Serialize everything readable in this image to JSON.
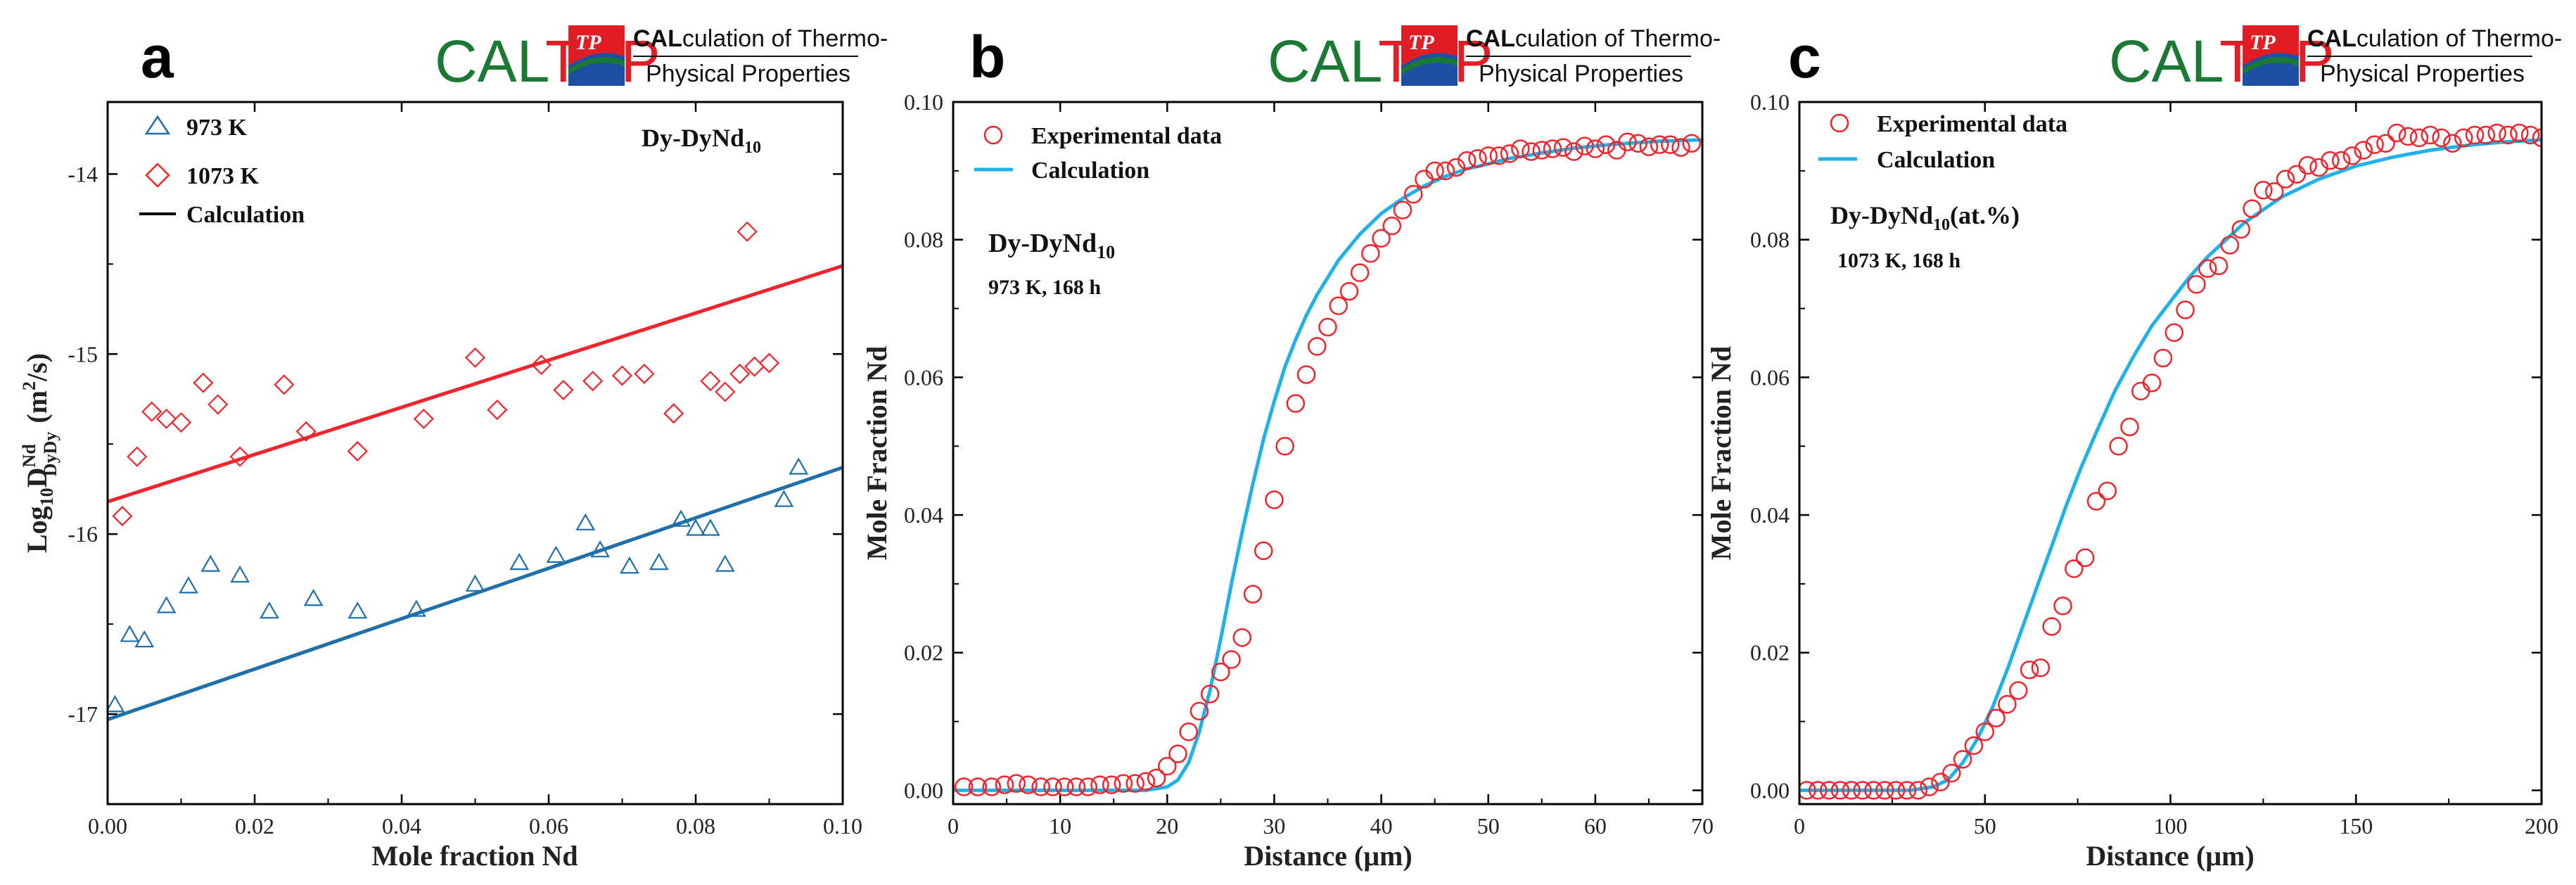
{
  "logo": {
    "brand_cal": "CAL",
    "brand_tpp": "TPP",
    "badge": "TP",
    "line1_bold": "CAL",
    "line1_rest": "culation of Thermo-",
    "line2": "Physical Properties"
  },
  "colors": {
    "red": "#f0242c",
    "blue": "#1f6fa8",
    "cyan": "#1fb1e8",
    "logo_green": "#1a7a33",
    "logo_red": "#e11d25",
    "logo_blue": "#1d4fa3"
  },
  "chart_data": [
    {
      "panel": "a",
      "type": "scatter",
      "title": "Dy-DyNd10",
      "xlabel": "Mole fraction Nd",
      "ylabel": "Log10 D Nd DyDy (m2/s)",
      "xlim": [
        0,
        0.1
      ],
      "ylim": [
        -17.5,
        -13.6
      ],
      "xticks": [
        0,
        0.02,
        0.04,
        0.06,
        0.08,
        0.1
      ],
      "xtick_labels": [
        "0.00",
        "0.02",
        "0.04",
        "0.06",
        "0.08",
        "0.10"
      ],
      "yticks": [
        -17,
        -16,
        -15,
        -14
      ],
      "ytick_labels": [
        "-17",
        "-16",
        "-15",
        "-14"
      ],
      "legend": [
        "973 K",
        "1073 K",
        "Calculation"
      ],
      "series": [
        {
          "name": "973 K",
          "marker": "triangle",
          "points": [
            [
              0.001,
              -16.95
            ],
            [
              0.003,
              -16.56
            ],
            [
              0.005,
              -16.59
            ],
            [
              0.008,
              -16.4
            ],
            [
              0.011,
              -16.29
            ],
            [
              0.014,
              -16.17
            ],
            [
              0.018,
              -16.23
            ],
            [
              0.022,
              -16.43
            ],
            [
              0.028,
              -16.36
            ],
            [
              0.034,
              -16.43
            ],
            [
              0.042,
              -16.42
            ],
            [
              0.05,
              -16.28
            ],
            [
              0.056,
              -16.16
            ],
            [
              0.061,
              -16.12
            ],
            [
              0.065,
              -15.94
            ],
            [
              0.067,
              -16.09
            ],
            [
              0.071,
              -16.18
            ],
            [
              0.075,
              -16.16
            ],
            [
              0.078,
              -15.92
            ],
            [
              0.08,
              -15.97
            ],
            [
              0.082,
              -15.97
            ],
            [
              0.084,
              -16.17
            ],
            [
              0.092,
              -15.81
            ],
            [
              0.094,
              -15.63
            ]
          ]
        },
        {
          "name": "1073 K",
          "marker": "diamond",
          "points": [
            [
              0.002,
              -15.9
            ],
            [
              0.004,
              -15.57
            ],
            [
              0.006,
              -15.32
            ],
            [
              0.008,
              -15.36
            ],
            [
              0.01,
              -15.38
            ],
            [
              0.013,
              -15.16
            ],
            [
              0.015,
              -15.28
            ],
            [
              0.018,
              -15.57
            ],
            [
              0.024,
              -15.17
            ],
            [
              0.027,
              -15.43
            ],
            [
              0.034,
              -15.54
            ],
            [
              0.043,
              -15.36
            ],
            [
              0.05,
              -15.02
            ],
            [
              0.053,
              -15.31
            ],
            [
              0.059,
              -15.06
            ],
            [
              0.062,
              -15.2
            ],
            [
              0.066,
              -15.15
            ],
            [
              0.07,
              -15.12
            ],
            [
              0.073,
              -15.11
            ],
            [
              0.077,
              -15.33
            ],
            [
              0.082,
              -15.15
            ],
            [
              0.084,
              -15.21
            ],
            [
              0.086,
              -15.11
            ],
            [
              0.087,
              -14.32
            ],
            [
              0.088,
              -15.07
            ],
            [
              0.09,
              -15.05
            ]
          ]
        }
      ],
      "lines": [
        {
          "name": "Calculation 1073 K",
          "color_key": "red",
          "x": [
            0,
            0.1
          ],
          "y": [
            -15.82,
            -14.51
          ]
        },
        {
          "name": "Calculation 973 K",
          "color_key": "blue",
          "x": [
            0,
            0.1
          ],
          "y": [
            -17.03,
            -15.63
          ]
        }
      ]
    },
    {
      "panel": "b",
      "type": "scatter",
      "title": "Dy-DyNd10",
      "subtitle": "973 K, 168 h",
      "xlabel": "Distance (μm)",
      "ylabel": "Mole Fraction Nd",
      "xlim": [
        0,
        70
      ],
      "ylim": [
        -0.002,
        0.1
      ],
      "xticks": [
        0,
        10,
        20,
        30,
        40,
        50,
        60,
        70
      ],
      "xtick_labels": [
        "0",
        "10",
        "20",
        "30",
        "40",
        "50",
        "60",
        "70"
      ],
      "yticks": [
        0,
        0.02,
        0.04,
        0.06,
        0.08,
        0.1
      ],
      "ytick_labels": [
        "0.00",
        "0.02",
        "0.04",
        "0.06",
        "0.08",
        "0.10"
      ],
      "legend": [
        "Experimental data",
        "Calculation"
      ],
      "series": [
        {
          "name": "Experimental data",
          "marker": "circle",
          "points": [
            [
              1,
              0.0005
            ],
            [
              2.3,
              0.0005
            ],
            [
              3.6,
              0.0005
            ],
            [
              4.8,
              0.0008
            ],
            [
              5.9,
              0.001
            ],
            [
              7,
              0.0008
            ],
            [
              8.2,
              0.0005
            ],
            [
              9.3,
              0.0005
            ],
            [
              10.4,
              0.0005
            ],
            [
              11.5,
              0.0005
            ],
            [
              12.6,
              0.0005
            ],
            [
              13.7,
              0.0008
            ],
            [
              14.8,
              0.0008
            ],
            [
              15.9,
              0.001
            ],
            [
              17,
              0.001
            ],
            [
              18,
              0.0013
            ],
            [
              19,
              0.0018
            ],
            [
              20,
              0.0035
            ],
            [
              21,
              0.0053
            ],
            [
              22,
              0.0085
            ],
            [
              23,
              0.0115
            ],
            [
              24,
              0.014
            ],
            [
              25,
              0.0172
            ],
            [
              26,
              0.019
            ],
            [
              27,
              0.0222
            ],
            [
              28,
              0.0285
            ],
            [
              29,
              0.0348
            ],
            [
              30,
              0.0422
            ],
            [
              31,
              0.05
            ],
            [
              32,
              0.0562
            ],
            [
              33,
              0.0604
            ],
            [
              34,
              0.0645
            ],
            [
              35,
              0.0673
            ],
            [
              36,
              0.0704
            ],
            [
              37,
              0.0725
            ],
            [
              38,
              0.0752
            ],
            [
              39,
              0.078
            ],
            [
              40,
              0.0802
            ],
            [
              41,
              0.082
            ],
            [
              42,
              0.0843
            ],
            [
              43,
              0.0866
            ],
            [
              44,
              0.0888
            ],
            [
              45,
              0.09
            ],
            [
              46,
              0.09
            ],
            [
              47,
              0.0905
            ],
            [
              48,
              0.0915
            ],
            [
              49,
              0.0918
            ],
            [
              50,
              0.0922
            ],
            [
              51,
              0.0922
            ],
            [
              52,
              0.0925
            ],
            [
              53,
              0.0932
            ],
            [
              54,
              0.0928
            ],
            [
              55,
              0.093
            ],
            [
              56,
              0.0932
            ],
            [
              57,
              0.0934
            ],
            [
              58,
              0.0928
            ],
            [
              59,
              0.0936
            ],
            [
              60,
              0.0932
            ],
            [
              61,
              0.0938
            ],
            [
              62,
              0.093
            ],
            [
              63,
              0.0942
            ],
            [
              64,
              0.094
            ],
            [
              65,
              0.0935
            ],
            [
              66,
              0.0938
            ],
            [
              67,
              0.0938
            ],
            [
              68,
              0.0934
            ],
            [
              69,
              0.094
            ]
          ]
        }
      ],
      "lines": [
        {
          "name": "Calculation",
          "color_key": "cyan",
          "x": [
            0,
            10,
            18,
            20,
            21,
            22,
            23,
            24,
            25,
            26,
            27,
            28,
            29,
            30,
            31,
            32,
            33,
            34,
            36,
            38,
            40,
            42,
            44,
            46,
            48,
            50,
            52,
            55,
            58,
            62,
            66,
            70
          ],
          "y": [
            0.0,
            0.0,
            0.0,
            0.0005,
            0.0015,
            0.004,
            0.0085,
            0.0145,
            0.022,
            0.03,
            0.0375,
            0.0445,
            0.051,
            0.0565,
            0.0615,
            0.0655,
            0.069,
            0.072,
            0.077,
            0.0808,
            0.0838,
            0.086,
            0.0878,
            0.0892,
            0.0903,
            0.091,
            0.0918,
            0.0926,
            0.0933,
            0.0939,
            0.0943,
            0.0945
          ]
        }
      ]
    },
    {
      "panel": "c",
      "type": "scatter",
      "title": "Dy-DyNd10(at.%)",
      "subtitle": "1073 K, 168 h",
      "xlabel": "Distance (μm)",
      "ylabel": "Mole Fraction Nd",
      "xlim": [
        0,
        200
      ],
      "ylim": [
        -0.002,
        0.1
      ],
      "xticks": [
        0,
        50,
        100,
        150,
        200
      ],
      "xtick_labels": [
        "0",
        "50",
        "100",
        "150",
        "200"
      ],
      "yticks": [
        0,
        0.02,
        0.04,
        0.06,
        0.08,
        0.1
      ],
      "ytick_labels": [
        "0.00",
        "0.02",
        "0.04",
        "0.06",
        "0.08",
        "0.10"
      ],
      "legend": [
        "Experimental data",
        "Calculation"
      ],
      "series": [
        {
          "name": "Experimental data",
          "marker": "circle",
          "points": [
            [
              2,
              0.0
            ],
            [
              5,
              0.0
            ],
            [
              8,
              0.0
            ],
            [
              11,
              0.0
            ],
            [
              14,
              0.0
            ],
            [
              17,
              0.0
            ],
            [
              20,
              0.0
            ],
            [
              23,
              0.0
            ],
            [
              26,
              0.0
            ],
            [
              29,
              0.0
            ],
            [
              32,
              0.0
            ],
            [
              35,
              0.0005
            ],
            [
              38,
              0.0012
            ],
            [
              41,
              0.0025
            ],
            [
              44,
              0.0045
            ],
            [
              47,
              0.0065
            ],
            [
              50,
              0.0085
            ],
            [
              53,
              0.0105
            ],
            [
              56,
              0.0125
            ],
            [
              59,
              0.0145
            ],
            [
              62,
              0.0175
            ],
            [
              65,
              0.0178
            ],
            [
              68,
              0.0238
            ],
            [
              71,
              0.0268
            ],
            [
              74,
              0.0322
            ],
            [
              77,
              0.0338
            ],
            [
              80,
              0.042
            ],
            [
              83,
              0.0435
            ],
            [
              86,
              0.05
            ],
            [
              89,
              0.0528
            ],
            [
              92,
              0.058
            ],
            [
              95,
              0.0592
            ],
            [
              98,
              0.0628
            ],
            [
              101,
              0.0665
            ],
            [
              104,
              0.0698
            ],
            [
              107,
              0.0735
            ],
            [
              110,
              0.0758
            ],
            [
              113,
              0.0762
            ],
            [
              116,
              0.0792
            ],
            [
              119,
              0.0815
            ],
            [
              122,
              0.0845
            ],
            [
              125,
              0.0872
            ],
            [
              128,
              0.087
            ],
            [
              131,
              0.0888
            ],
            [
              134,
              0.0895
            ],
            [
              137,
              0.0908
            ],
            [
              140,
              0.0905
            ],
            [
              143,
              0.0915
            ],
            [
              146,
              0.0915
            ],
            [
              149,
              0.0922
            ],
            [
              152,
              0.093
            ],
            [
              155,
              0.0938
            ],
            [
              158,
              0.094
            ],
            [
              161,
              0.0955
            ],
            [
              164,
              0.095
            ],
            [
              167,
              0.0948
            ],
            [
              170,
              0.0952
            ],
            [
              173,
              0.0948
            ],
            [
              176,
              0.094
            ],
            [
              179,
              0.0948
            ],
            [
              182,
              0.0952
            ],
            [
              185,
              0.0952
            ],
            [
              188,
              0.0955
            ],
            [
              191,
              0.0952
            ],
            [
              194,
              0.0955
            ],
            [
              197,
              0.0952
            ],
            [
              200,
              0.0948
            ]
          ]
        }
      ],
      "lines": [
        {
          "name": "Calculation",
          "color_key": "cyan",
          "x": [
            0,
            30,
            36,
            40,
            44,
            48,
            52,
            56,
            60,
            64,
            68,
            72,
            76,
            80,
            85,
            90,
            95,
            100,
            105,
            110,
            115,
            120,
            130,
            140,
            150,
            160,
            170,
            180,
            190,
            200
          ],
          "y": [
            0.0,
            0.0,
            0.0005,
            0.0015,
            0.004,
            0.0075,
            0.012,
            0.0175,
            0.0235,
            0.0295,
            0.0355,
            0.0415,
            0.047,
            0.052,
            0.058,
            0.063,
            0.0675,
            0.071,
            0.0745,
            0.0775,
            0.08,
            0.0825,
            0.0862,
            0.0888,
            0.0907,
            0.092,
            0.093,
            0.0937,
            0.0942,
            0.0945
          ]
        }
      ]
    }
  ],
  "labels": {
    "panel_a": "a",
    "panel_b": "b",
    "panel_c": "c",
    "a_title_base": "Dy-DyNd",
    "a_title_sub": "10",
    "a_legend_973": "973 K",
    "a_legend_1073": "1073 K",
    "a_legend_calc": "Calculation",
    "a_xlabel": "Mole fraction Nd",
    "a_ylabel_log": "Log",
    "a_ylabel_log_sub": "10",
    "a_ylabel_d": "D",
    "a_ylabel_sup": "Nd",
    "a_ylabel_sub": "DyDy",
    "a_ylabel_units1": "(m",
    "a_ylabel_units_sup": "2",
    "a_ylabel_units2": "/s)",
    "b_legend_exp": "Experimental data",
    "b_legend_calc": "Calculation",
    "b_title_base": "Dy-DyNd",
    "b_title_sub": "10",
    "b_subtitle": "973 K, 168 h",
    "b_xlabel": "Distance (μm)",
    "b_ylabel": "Mole Fraction Nd",
    "c_legend_exp": "Experimental data",
    "c_legend_calc": "Calculation",
    "c_title_base": "Dy-DyNd",
    "c_title_sub": "10",
    "c_title_tail": "(at.%)",
    "c_subtitle": "1073 K, 168 h",
    "c_xlabel": "Distance (μm)",
    "c_ylabel": "Mole Fraction Nd"
  }
}
